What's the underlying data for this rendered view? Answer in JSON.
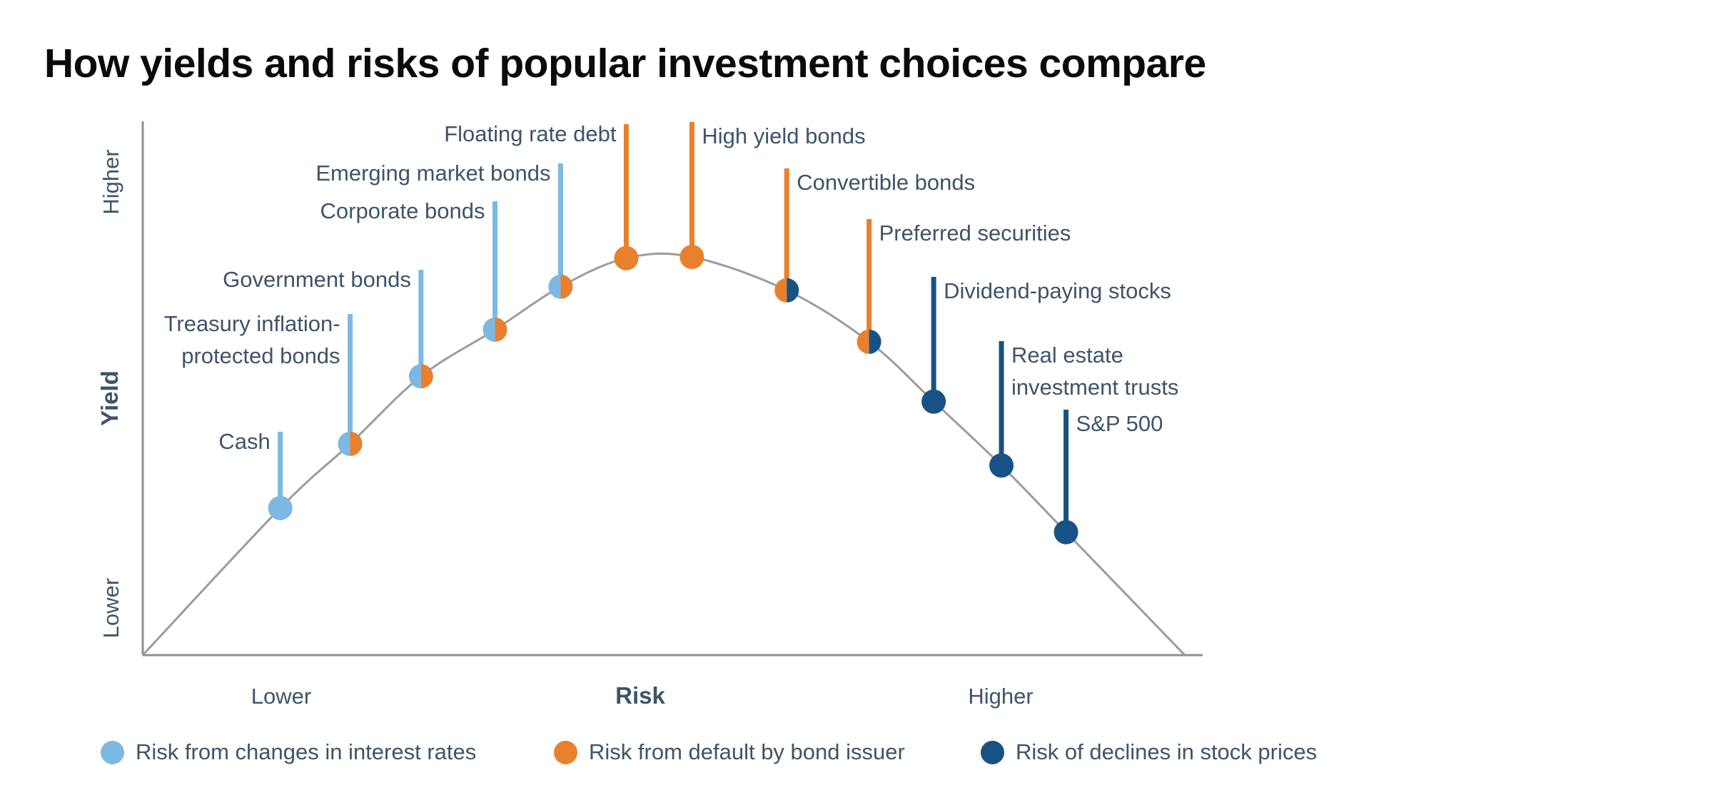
{
  "title": "How yields and risks of popular investment choices compare",
  "colors": {
    "interest_rate": "#7CB9E2",
    "default_risk": "#E8802D",
    "stock_price": "#175284",
    "curve": "#9c9c9c",
    "axis": "#8f8f8f",
    "text": "#3e5468",
    "title_text": "#0b0b0b"
  },
  "y_axis": {
    "label": "Yield",
    "top_tick": "Higher",
    "bottom_tick": "Lower"
  },
  "x_axis": {
    "label": "Risk",
    "left_tick": "Lower",
    "right_tick": "Higher"
  },
  "legend": [
    {
      "label": "Risk from changes in interest rates",
      "category": "interest_rate"
    },
    {
      "label": "Risk from default by bond issuer",
      "category": "default_risk"
    },
    {
      "label": "Risk of declines in stock prices",
      "category": "stock_price"
    }
  ],
  "chart_data": {
    "type": "scatter",
    "title": "How yields and risks of popular investment choices compare",
    "xlabel": "Risk",
    "ylabel": "Yield",
    "x_range_labels": [
      "Lower",
      "Higher"
    ],
    "y_range_labels": [
      "Lower",
      "Higher"
    ],
    "curve_shape": "inverted-U arc from (risk 0, yield 0) through apex near risk 0.5 to (risk 1, yield 0); all points lie on the curve",
    "curve_endpoints": [
      [
        0,
        0
      ],
      [
        1,
        0
      ]
    ],
    "points": [
      {
        "id": "cash",
        "label_lines": [
          "Cash"
        ],
        "risk": 0.132,
        "yield": 0.366,
        "risk_categories": [
          "interest_rate"
        ],
        "label_side": "left"
      },
      {
        "id": "tips",
        "label_lines": [
          "Treasury inflation-",
          "protected bonds"
        ],
        "risk": 0.199,
        "yield": 0.526,
        "risk_categories": [
          "interest_rate",
          "default_risk"
        ],
        "label_side": "left"
      },
      {
        "id": "gov",
        "label_lines": [
          "Government bonds"
        ],
        "risk": 0.267,
        "yield": 0.694,
        "risk_categories": [
          "interest_rate",
          "default_risk"
        ],
        "label_side": "left"
      },
      {
        "id": "corp",
        "label_lines": [
          "Corporate bonds"
        ],
        "risk": 0.338,
        "yield": 0.81,
        "risk_categories": [
          "interest_rate",
          "default_risk"
        ],
        "label_side": "left"
      },
      {
        "id": "em",
        "label_lines": [
          "Emerging market bonds"
        ],
        "risk": 0.401,
        "yield": 0.917,
        "risk_categories": [
          "interest_rate",
          "default_risk"
        ],
        "label_side": "left"
      },
      {
        "id": "float",
        "label_lines": [
          "Floating rate debt"
        ],
        "risk": 0.464,
        "yield": 0.988,
        "risk_categories": [
          "default_risk"
        ],
        "label_side": "left"
      },
      {
        "id": "high",
        "label_lines": [
          "High yield bonds"
        ],
        "risk": 0.527,
        "yield": 0.991,
        "risk_categories": [
          "default_risk"
        ],
        "label_side": "right"
      },
      {
        "id": "conv",
        "label_lines": [
          "Convertible bonds"
        ],
        "risk": 0.618,
        "yield": 0.908,
        "risk_categories": [
          "default_risk",
          "stock_price"
        ],
        "label_side": "right"
      },
      {
        "id": "pref",
        "label_lines": [
          "Preferred securities"
        ],
        "risk": 0.697,
        "yield": 0.78,
        "risk_categories": [
          "default_risk",
          "stock_price"
        ],
        "label_side": "right"
      },
      {
        "id": "div",
        "label_lines": [
          "Dividend-paying stocks"
        ],
        "risk": 0.759,
        "yield": 0.631,
        "risk_categories": [
          "stock_price"
        ],
        "label_side": "right"
      },
      {
        "id": "reit",
        "label_lines": [
          "Real estate",
          "investment trusts"
        ],
        "risk": 0.824,
        "yield": 0.472,
        "risk_categories": [
          "stock_price"
        ],
        "label_side": "right"
      },
      {
        "id": "sp500",
        "label_lines": [
          "S&P 500"
        ],
        "risk": 0.886,
        "yield": 0.306,
        "risk_categories": [
          "stock_price"
        ],
        "label_side": "right"
      }
    ]
  }
}
